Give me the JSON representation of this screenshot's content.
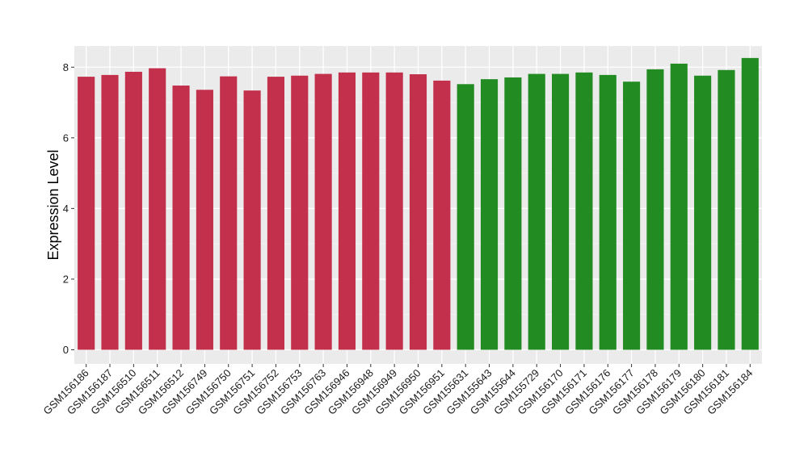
{
  "chart_data": {
    "type": "bar",
    "title": "",
    "xlabel": "",
    "ylabel": "Expression Level",
    "ylim": [
      -0.4,
      8.6
    ],
    "yticks": [
      0,
      2,
      4,
      6,
      8
    ],
    "grid": true,
    "colors": {
      "panel_bg": "#ebebeb",
      "grid_major": "#ffffff",
      "group1": "#c3304b",
      "group2": "#228b22"
    },
    "categories": [
      "GSM156186",
      "GSM156187",
      "GSM156510",
      "GSM156511",
      "GSM156512",
      "GSM156749",
      "GSM156750",
      "GSM156751",
      "GSM156752",
      "GSM156753",
      "GSM156763",
      "GSM156946",
      "GSM156948",
      "GSM156949",
      "GSM156950",
      "GSM156951",
      "GSM155631",
      "GSM155643",
      "GSM155644",
      "GSM155729",
      "GSM156170",
      "GSM156171",
      "GSM156176",
      "GSM156177",
      "GSM156178",
      "GSM156179",
      "GSM156180",
      "GSM156181",
      "GSM156184"
    ],
    "values": [
      7.73,
      7.78,
      7.87,
      7.97,
      7.48,
      7.36,
      7.74,
      7.34,
      7.73,
      7.76,
      7.81,
      7.85,
      7.85,
      7.85,
      7.8,
      7.62,
      7.52,
      7.66,
      7.71,
      7.81,
      7.81,
      7.85,
      7.78,
      7.59,
      7.94,
      8.1,
      7.76,
      7.92,
      8.26
    ],
    "groups": [
      "group1",
      "group1",
      "group1",
      "group1",
      "group1",
      "group1",
      "group1",
      "group1",
      "group1",
      "group1",
      "group1",
      "group1",
      "group1",
      "group1",
      "group1",
      "group1",
      "group2",
      "group2",
      "group2",
      "group2",
      "group2",
      "group2",
      "group2",
      "group2",
      "group2",
      "group2",
      "group2",
      "group2",
      "group2"
    ]
  }
}
